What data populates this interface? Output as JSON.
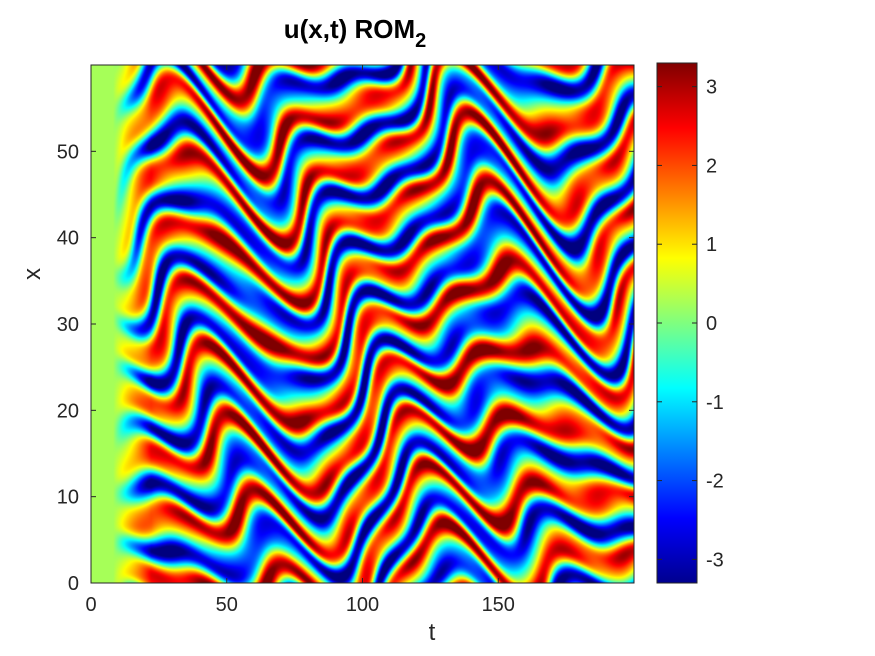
{
  "chart_data": {
    "type": "heatmap",
    "title_main": "u(x,t) ROM",
    "title_subscript": "2",
    "xlabel": "t",
    "ylabel": "x",
    "xlim": [
      0,
      200
    ],
    "ylim": [
      0,
      60
    ],
    "x_ticks": [
      0,
      50,
      100,
      150
    ],
    "y_ticks": [
      0,
      10,
      20,
      30,
      40,
      50
    ],
    "colorbar": {
      "colormap": "jet",
      "clim": [
        -3.3,
        3.3
      ],
      "ticks": [
        -3,
        -2,
        -1,
        0,
        1,
        2,
        3
      ]
    },
    "value_range_note": "u spans approximately -3.3 to 3.3"
  }
}
